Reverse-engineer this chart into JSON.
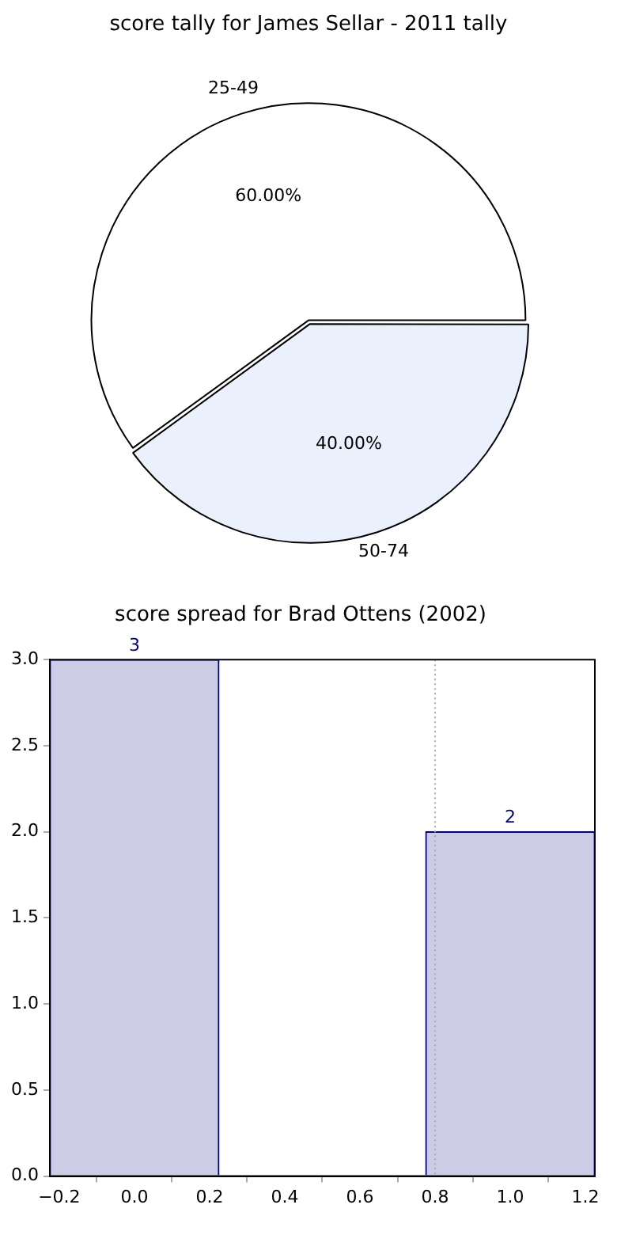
{
  "chart_data": [
    {
      "type": "pie",
      "title": "score tally for James Sellar - 2011 tally",
      "categories": [
        "25-49",
        "50-74"
      ],
      "values": [
        60,
        40
      ],
      "colors": [
        "#ffffff",
        "#eaf0fc"
      ],
      "value_labels": [
        "60.00%",
        "40.00%"
      ]
    },
    {
      "type": "histogram",
      "title": "score spread for Brad Ottens (2002)",
      "bins": [
        -0.225,
        0.225,
        0.775,
        1.225
      ],
      "values": [
        3,
        0,
        2
      ],
      "value_labels": [
        "3",
        null,
        "2"
      ],
      "color": "#cccce5",
      "xlim": [
        -0.225,
        1.225
      ],
      "xticks": [
        {
          "value": -0.2,
          "label": "−0.2"
        },
        {
          "value": 0,
          "label": "0.0"
        },
        {
          "value": 0.2,
          "label": "0.2"
        },
        {
          "value": 0.4,
          "label": "0.4"
        },
        {
          "value": 0.6,
          "label": "0.6"
        },
        {
          "value": 0.8,
          "label": "0.8"
        },
        {
          "value": 1,
          "label": "1.0"
        },
        {
          "value": 1.2,
          "label": "1.2"
        }
      ],
      "ylim": [
        0,
        3
      ],
      "yticks": [
        {
          "value": 0,
          "label": "0.0"
        },
        {
          "value": 0.5,
          "label": "0.5"
        },
        {
          "value": 1,
          "label": "1.0"
        },
        {
          "value": 1.5,
          "label": "1.5"
        },
        {
          "value": 2,
          "label": "2.0"
        },
        {
          "value": 2.5,
          "label": "2.5"
        },
        {
          "value": 3,
          "label": "3.0"
        }
      ],
      "ref_lines": [
        {
          "axis": "x",
          "value": 0.8,
          "color": "#aaaaaa",
          "line_style": "dotted"
        }
      ],
      "grid": false
    }
  ]
}
